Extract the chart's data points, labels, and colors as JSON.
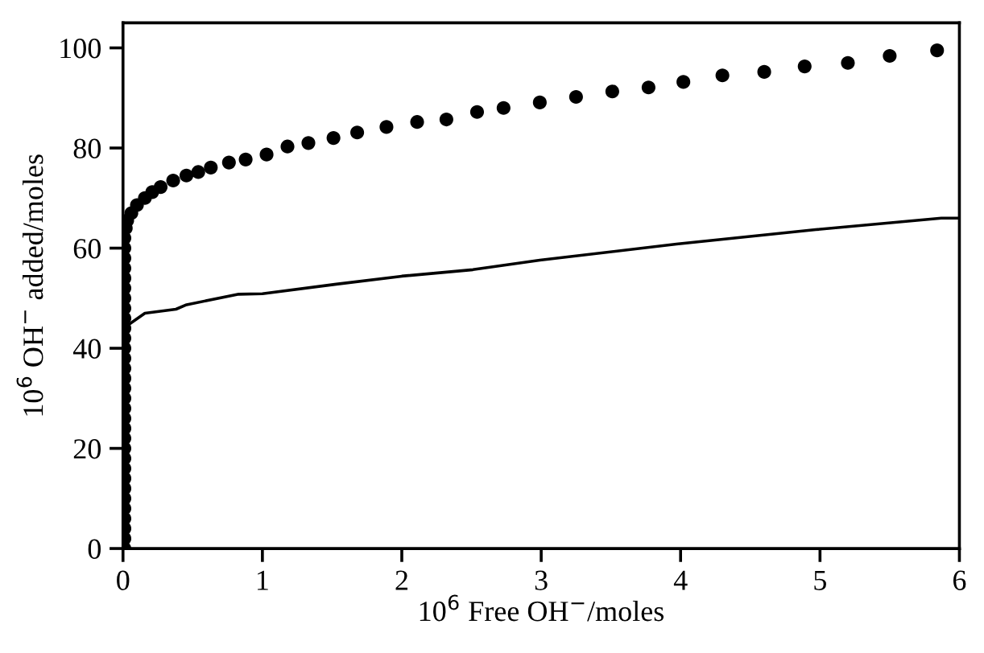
{
  "chart_data": {
    "type": "scatter",
    "xlabel": "10$^{6}$ Free OH$^{−}$/moles",
    "ylabel": "10$^{6}$ OH$^{−}$ added/moles",
    "xlim": [
      0,
      6
    ],
    "ylim": [
      0,
      105
    ],
    "xticks": [
      0,
      1,
      2,
      3,
      4,
      5,
      6
    ],
    "yticks": [
      0,
      20,
      40,
      60,
      80,
      100
    ],
    "grid": false,
    "legend": false,
    "series": [
      {
        "marker": "circle",
        "color": "#000000",
        "x": [
          0.01,
          0.01,
          0.01,
          0.01,
          0.01,
          0.01,
          0.01,
          0.01,
          0.01,
          0.01,
          0.01,
          0.01,
          0.01,
          0.01,
          0.01,
          0.01,
          0.01,
          0.01,
          0.01,
          0.01,
          0.01,
          0.01,
          0.01,
          0.01,
          0.01,
          0.01,
          0.01,
          0.01,
          0.01,
          0.01,
          0.01,
          0.01,
          0.02,
          0.03,
          0.06,
          0.1,
          0.157,
          0.21,
          0.27,
          0.36,
          0.455,
          0.54,
          0.63,
          0.76,
          0.88,
          1.03,
          1.18,
          1.33,
          1.51,
          1.68,
          1.89,
          2.11,
          2.32,
          2.54,
          2.73,
          2.99,
          3.25,
          3.51,
          3.77,
          4.02,
          4.3,
          4.6,
          4.89,
          5.2,
          5.5,
          5.84
        ],
        "values": [
          0,
          2,
          4,
          6,
          8,
          10,
          12,
          14,
          16,
          18,
          20,
          22,
          24,
          26,
          28,
          30,
          32,
          34,
          36,
          38,
          40,
          42,
          44,
          46,
          48,
          50,
          52,
          54,
          56,
          58,
          60,
          62,
          64,
          65.5,
          67,
          68.6,
          70,
          71.2,
          72.2,
          73.5,
          74.5,
          75.2,
          76.1,
          77.1,
          77.7,
          78.7,
          80.3,
          81,
          82,
          83.1,
          84.2,
          85.2,
          85.7,
          87.2,
          88,
          89.1,
          90.2,
          91.3,
          92.1,
          93.2,
          94.5,
          95.2,
          96.3,
          97,
          98.4,
          99.5
        ]
      },
      {
        "type": "line",
        "line_style": "solid",
        "color": "#000000",
        "x": [
          0.05,
          0.157,
          0.38,
          0.456,
          0.83,
          1.0,
          1.53,
          2.0,
          2.51,
          2.99,
          3.97,
          4.97,
          5.87,
          5.99
        ],
        "values": [
          44.9,
          47,
          47.8,
          48.7,
          50.8,
          50.9,
          52.8,
          54.4,
          55.7,
          57.6,
          60.8,
          63.7,
          66,
          66
        ]
      }
    ]
  }
}
